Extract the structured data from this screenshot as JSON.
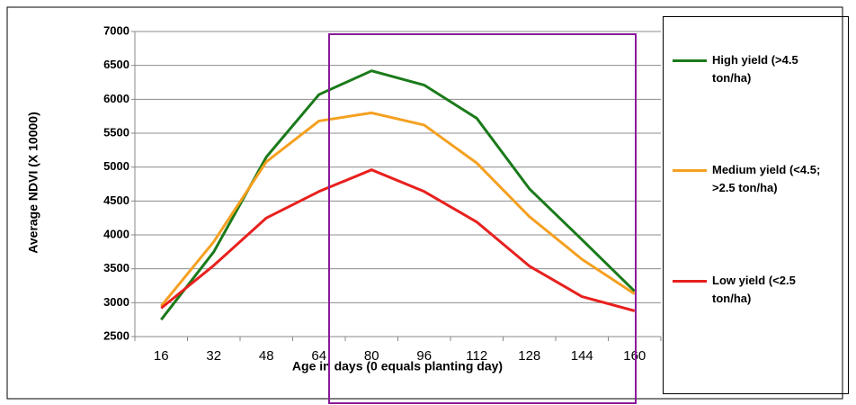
{
  "chart_data": {
    "type": "line",
    "x_label": "Age in days (0 equals planting day)",
    "y_label": "Average NDVI (X 10000)",
    "categories": [
      16,
      32,
      48,
      64,
      80,
      96,
      112,
      128,
      144,
      160
    ],
    "series": [
      {
        "name": "High yield (>4.5 ton/ha)",
        "color": "#1a7a1a",
        "values": [
          2750,
          3750,
          5150,
          6070,
          6420,
          6210,
          5720,
          4680,
          3930,
          3170
        ]
      },
      {
        "name": "Medium yield (<4.5; >2.5 ton/ha)",
        "color": "#f5a020",
        "values": [
          2950,
          3900,
          5080,
          5680,
          5800,
          5620,
          5060,
          4270,
          3640,
          3130
        ]
      },
      {
        "name": "Low yield (<2.5 ton/ha)",
        "color": "#e8201e",
        "values": [
          2920,
          3550,
          4250,
          4640,
          4960,
          4640,
          4190,
          3540,
          3090,
          2880
        ]
      }
    ],
    "ylim": [
      2500,
      7000
    ],
    "yticks": [
      2500,
      3000,
      3500,
      4000,
      4500,
      5000,
      5500,
      6000,
      6500,
      7000
    ],
    "grid": true
  }
}
